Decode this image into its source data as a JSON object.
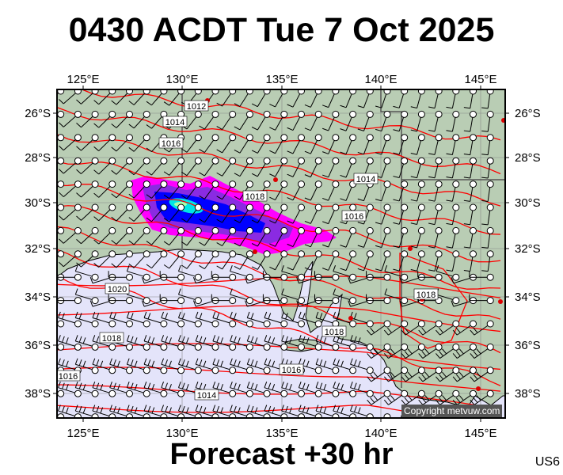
{
  "title": "0430 ACDT Tue 7 Oct 2025",
  "footer": "Forecast +30 hr",
  "region_code": "US6",
  "copyright": "Copyright metvuw.com",
  "axes": {
    "lon_labels": [
      "125°E",
      "130°E",
      "135°E",
      "140°E",
      "145°E"
    ],
    "lat_labels": [
      "26°S",
      "28°S",
      "30°S",
      "32°S",
      "34°S",
      "36°S",
      "38°S"
    ]
  },
  "isobar_labels": [
    "1012",
    "1014",
    "1016",
    "1014",
    "1018",
    "1016",
    "1020",
    "1018",
    "1018",
    "1018",
    "1016",
    "1016",
    "1014"
  ],
  "colors": {
    "land": "#b9cdb4",
    "ocean": "#e4e4fa",
    "isobar": "#ff0000",
    "rain_light": "#ff00ff",
    "rain_mid": "#8a2be2",
    "rain_heavy": "#0000ff",
    "rain_core": "#00e5e5"
  }
}
